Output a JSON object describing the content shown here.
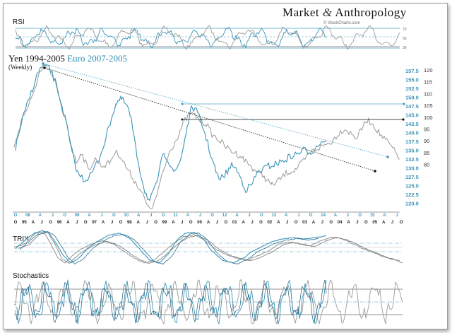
{
  "header": {
    "brand": "Market",
    "brand_amp": "&",
    "brand_right": "Anthropology",
    "credit": "© StockCharts.com"
  },
  "colors": {
    "yen": "#9b9b9b",
    "euro": "#3a94b8",
    "ref_line": "#7fbcd2",
    "trend": "#111111"
  },
  "chart_data": [
    {
      "type": "line",
      "name": "rsi",
      "title": "RSI",
      "reference_lines": [
        30,
        50,
        70
      ],
      "series": [
        {
          "name": "Yen",
          "color": "#9b9b9b"
        },
        {
          "name": "Euro",
          "color": "#3a94b8"
        }
      ]
    },
    {
      "type": "line",
      "name": "price",
      "title": "Yen 1994-2005",
      "title_euro": "Euro 2007-2005",
      "subtitle": "(Weekly)",
      "right_axis_yen": {
        "ticks": [
          120,
          115,
          110,
          105,
          100,
          95,
          90,
          85,
          80
        ]
      },
      "right_axis_euro": {
        "ticks": [
          157.5,
          155.0,
          152.5,
          150.0,
          147.5,
          145.0,
          142.5,
          140.0,
          137.5,
          135.0,
          132.5,
          130.0,
          127.5,
          125.0,
          122.5,
          120.0
        ]
      },
      "x_ticks_top": [
        "O",
        "08",
        "A",
        "J",
        "O",
        "09",
        "A",
        "J",
        "O",
        "10",
        "A",
        "J",
        "O",
        "11",
        "A",
        "J",
        "O",
        "12",
        "A",
        "J",
        "O",
        "13",
        "A",
        "J",
        "O",
        "14",
        "A",
        "J",
        "O",
        "15",
        "A",
        "J"
      ],
      "x_ticks_bottom": [
        "O",
        "95",
        "A",
        "J",
        "O",
        "96",
        "A",
        "J",
        "O",
        "97",
        "A",
        "J",
        "O",
        "98",
        "A",
        "J",
        "O",
        "99",
        "A",
        "J",
        "O",
        "00",
        "A",
        "J",
        "O",
        "01",
        "A",
        "J",
        "O",
        "02",
        "A",
        "J",
        "O",
        "03",
        "A",
        "J",
        "O",
        "04",
        "A",
        "J",
        "O",
        "05",
        "A",
        "J",
        "O"
      ],
      "series": [
        {
          "name": "Yen 1994-2005",
          "color": "#9b9b9b"
        },
        {
          "name": "Euro 2007-2005",
          "color": "#3a94b8"
        }
      ]
    },
    {
      "type": "line",
      "name": "trix",
      "title": "TRIX",
      "series": [
        {
          "name": "Yen",
          "color": "#9b9b9b"
        },
        {
          "name": "Euro",
          "color": "#3a94b8"
        }
      ]
    },
    {
      "type": "line",
      "name": "stochastics",
      "title": "Stochastics",
      "reference_lines": [
        20,
        50,
        80
      ],
      "series": [
        {
          "name": "Yen",
          "color": "#9b9b9b"
        },
        {
          "name": "Euro",
          "color": "#3a94b8"
        }
      ]
    }
  ]
}
